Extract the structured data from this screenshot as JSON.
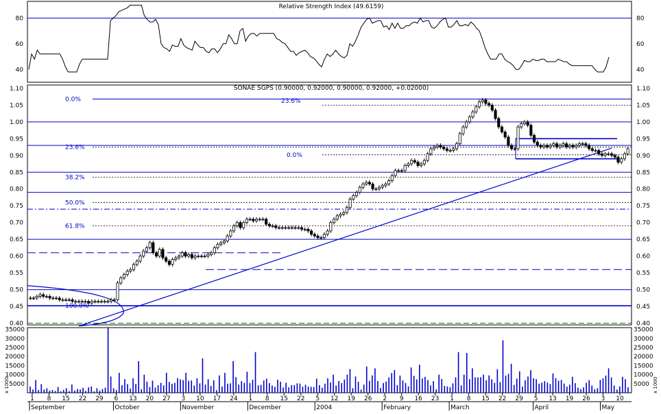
{
  "rsi": {
    "title": "Relative Strength Index (49.6159)",
    "ylim": [
      30,
      93
    ],
    "yticks": [
      40,
      60,
      80
    ],
    "hline": 80,
    "values": [
      40,
      52,
      48,
      55,
      52,
      52,
      52,
      52,
      52,
      52,
      52,
      52,
      48,
      42,
      38,
      38,
      38,
      38,
      44,
      48,
      48,
      48,
      48,
      48,
      48,
      48,
      48,
      48,
      48,
      78,
      80,
      82,
      85,
      86,
      87,
      88,
      90,
      90,
      90,
      90,
      90,
      82,
      79,
      77,
      77,
      79,
      75,
      60,
      57,
      56,
      54,
      59,
      58,
      58,
      64,
      59,
      57,
      56,
      55,
      62,
      59,
      57,
      57,
      54,
      53,
      56,
      56,
      53,
      56,
      60,
      60,
      67,
      64,
      60,
      60,
      70,
      72,
      62,
      66,
      68,
      68,
      66,
      68,
      68,
      68,
      68,
      68,
      68,
      64,
      63,
      61,
      60,
      57,
      54,
      54,
      51,
      53,
      54,
      55,
      53,
      50,
      49,
      47,
      44,
      42,
      48,
      52,
      50,
      52,
      55,
      52,
      50,
      49,
      51,
      60,
      58,
      62,
      67,
      73,
      76,
      79,
      80,
      76,
      77,
      78,
      78,
      73,
      74,
      71,
      76,
      72,
      76,
      72,
      72,
      74,
      74,
      76,
      77,
      76,
      80,
      77,
      78,
      78,
      73,
      72,
      74,
      77,
      79,
      80,
      73,
      73,
      75,
      78,
      74,
      74,
      75,
      74,
      77,
      75,
      72,
      70,
      64,
      57,
      52,
      48,
      48,
      48,
      52,
      52,
      48,
      46,
      45,
      43,
      40,
      40,
      43,
      47,
      46,
      46,
      48,
      47,
      47,
      48,
      48,
      46,
      46,
      46,
      46,
      48,
      47,
      46,
      46,
      44,
      43,
      43,
      43,
      43,
      43,
      43,
      43,
      43,
      40,
      38,
      38,
      38,
      42,
      49.6
    ]
  },
  "price": {
    "title": "SONAE SGPS (0.90000, 0.92000, 0.90000, 0.92000, +0.02000)",
    "ylim": [
      0.395,
      1.11
    ],
    "yticks": [
      "0.40",
      "0.45",
      "0.50",
      "0.55",
      "0.60",
      "0.65",
      "0.70",
      "0.75",
      "0.80",
      "0.85",
      "0.90",
      "0.95",
      "1.00",
      "1.05",
      "1.10"
    ],
    "closes": [
      0.475,
      0.475,
      0.48,
      0.485,
      0.48,
      0.48,
      0.475,
      0.475,
      0.475,
      0.47,
      0.47,
      0.47,
      0.47,
      0.465,
      0.465,
      0.465,
      0.465,
      0.465,
      0.46,
      0.465,
      0.465,
      0.465,
      0.465,
      0.465,
      0.465,
      0.47,
      0.47,
      0.52,
      0.535,
      0.545,
      0.555,
      0.56,
      0.575,
      0.585,
      0.6,
      0.615,
      0.625,
      0.64,
      0.61,
      0.6,
      0.62,
      0.595,
      0.585,
      0.575,
      0.59,
      0.595,
      0.6,
      0.61,
      0.6,
      0.605,
      0.595,
      0.6,
      0.6,
      0.6,
      0.6,
      0.605,
      0.61,
      0.625,
      0.635,
      0.64,
      0.645,
      0.66,
      0.675,
      0.69,
      0.7,
      0.685,
      0.7,
      0.71,
      0.71,
      0.705,
      0.71,
      0.71,
      0.71,
      0.695,
      0.69,
      0.69,
      0.685,
      0.685,
      0.685,
      0.685,
      0.685,
      0.685,
      0.685,
      0.685,
      0.68,
      0.68,
      0.675,
      0.665,
      0.66,
      0.655,
      0.655,
      0.665,
      0.675,
      0.7,
      0.71,
      0.72,
      0.725,
      0.73,
      0.745,
      0.77,
      0.78,
      0.79,
      0.805,
      0.815,
      0.82,
      0.815,
      0.8,
      0.8,
      0.805,
      0.81,
      0.815,
      0.825,
      0.84,
      0.855,
      0.855,
      0.855,
      0.87,
      0.875,
      0.885,
      0.88,
      0.87,
      0.875,
      0.885,
      0.905,
      0.92,
      0.925,
      0.93,
      0.925,
      0.92,
      0.915,
      0.915,
      0.92,
      0.935,
      0.965,
      0.985,
      1.0,
      1.015,
      1.03,
      1.045,
      1.06,
      1.065,
      1.055,
      1.05,
      1.035,
      1.01,
      0.985,
      0.97,
      0.955,
      0.93,
      0.92,
      0.92,
      0.985,
      0.995,
      1.0,
      0.99,
      0.96,
      0.94,
      0.93,
      0.925,
      0.93,
      0.925,
      0.93,
      0.935,
      0.925,
      0.93,
      0.935,
      0.925,
      0.93,
      0.925,
      0.93,
      0.935,
      0.935,
      0.93,
      0.92,
      0.915,
      0.915,
      0.905,
      0.9,
      0.905,
      0.905,
      0.9,
      0.895,
      0.88,
      0.89,
      0.905,
      0.92
    ],
    "fib_left": [
      {
        "label": "0.0%",
        "value": 1.068
      },
      {
        "label": "23.6%",
        "value": 0.925
      },
      {
        "label": "38.2%",
        "value": 0.835
      },
      {
        "label": "50.0%",
        "value": 0.76
      },
      {
        "label": "61.8%",
        "value": 0.69
      },
      {
        "label": "100.0%",
        "value": 0.452
      }
    ],
    "fib_right": [
      {
        "label": "23.6%",
        "value": 1.05
      },
      {
        "label": "0.0%",
        "value": 0.902
      }
    ]
  },
  "volume": {
    "ylim": [
      0,
      36000
    ],
    "yticks": [
      "35000",
      "30000",
      "25000",
      "20000",
      "15000",
      "10000",
      "5000"
    ],
    "tick_small": [
      "5000",
      "1000"
    ],
    "unit_label": "x 1000",
    "values": [
      3500,
      1800,
      7000,
      1500,
      4800,
      1800,
      2500,
      1200,
      1500,
      1000,
      3200,
      800,
      1600,
      2500,
      900,
      4600,
      1200,
      2100,
      1800,
      2700,
      1000,
      3000,
      3500,
      800,
      2500,
      1200,
      2000,
      2800,
      36000,
      9000,
      2500,
      1500,
      11000,
      4200,
      7500,
      4800,
      2300,
      8000,
      4900,
      17500,
      1900,
      10000,
      6200,
      3200,
      6700,
      2900,
      4200,
      5500,
      4100,
      11000,
      6000,
      5000,
      5500,
      8100,
      7400,
      7000,
      11000,
      6600,
      6800,
      4000,
      8000,
      5200,
      19000,
      4500,
      7500,
      3800,
      6900,
      1500,
      9600,
      3400,
      11000,
      5000,
      5200,
      17500,
      8600,
      4500,
      6400,
      5500,
      11600,
      5400,
      7200,
      22500,
      4100,
      4400,
      6800,
      7800,
      5300,
      4000,
      3300,
      7200,
      6100,
      2900,
      5500,
      3000,
      4200,
      4200,
      5200,
      5100,
      3300,
      4400,
      3400,
      3300,
      3200,
      7800,
      4200,
      2800,
      5000,
      8000,
      5700,
      10000,
      4000,
      6500,
      5400,
      7300,
      10000,
      13100,
      2500,
      9000,
      6100,
      1800,
      4500,
      14500,
      6600,
      9600,
      13500,
      6500,
      2700,
      5400,
      6200,
      8500,
      10900,
      12500,
      4200,
      9500,
      6800,
      5400,
      3500,
      14000,
      9300,
      7400,
      15500,
      7900,
      8800,
      7000,
      4100,
      6400,
      1900,
      10000,
      7600,
      3800,
      3500,
      3100,
      5200,
      8500,
      22500,
      4100,
      10000,
      22000,
      7500,
      13500,
      8500,
      8500,
      8600,
      10000,
      6900,
      9600,
      7500,
      5500,
      13000,
      5900,
      29000,
      9500,
      10500,
      16000,
      4300,
      7800,
      11800,
      3400,
      6900,
      9000,
      12500,
      8000,
      7500,
      5000,
      5600,
      6400,
      5600,
      4800,
      10700,
      8100,
      6700,
      7100,
      5100,
      3400,
      4500,
      8800,
      5300,
      2800,
      2000,
      3000,
      5500,
      7000,
      4000,
      2000,
      2500,
      7100,
      8000,
      9500,
      13500,
      8500,
      4000,
      1800,
      3500,
      8800,
      7500,
      3000
    ]
  },
  "xaxis": {
    "day_ticks": [
      "1",
      "8",
      "15",
      "22",
      "29",
      "6",
      "13",
      "20",
      "27",
      "3",
      "10",
      "17",
      "24",
      "1",
      "8",
      "15",
      "22",
      "5",
      "12",
      "19",
      "26",
      "2",
      "9",
      "16",
      "23",
      "1",
      "8",
      "15",
      "22",
      "29",
      "5",
      "13",
      "19",
      "26",
      "3",
      "10"
    ],
    "months": [
      "September",
      "October",
      "November",
      "December",
      "2004",
      "February",
      "March",
      "April",
      "May"
    ]
  },
  "colors": {
    "line": "#0000cc",
    "up_body": "#ffffff",
    "down_body": "#000000",
    "volume": "#0000cc",
    "baseline": "#008000"
  }
}
